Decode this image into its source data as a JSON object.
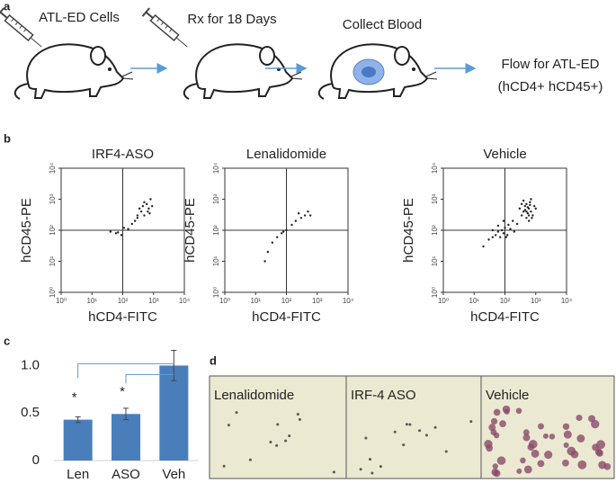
{
  "panel_labels": [
    "a",
    "b",
    "c",
    "d"
  ],
  "schematic": {
    "steps": [
      "ATL-ED Cells",
      "Rx  for 18 Days",
      "Collect Blood"
    ],
    "result": [
      "Flow for ATL-ED",
      "(hCD4+ hCD45+)"
    ]
  },
  "chart_data": [
    {
      "type": "scatter",
      "title": "IRF4-ASO",
      "x_label": "hCD4-FITC",
      "y_label": "hCD45-PE",
      "x": [
        40,
        60,
        70,
        90,
        110,
        150,
        200,
        250,
        300,
        350,
        400,
        450,
        500,
        600,
        700,
        800,
        900,
        500,
        650,
        300,
        750
      ],
      "y": [
        90,
        80,
        85,
        70,
        120,
        110,
        160,
        200,
        300,
        500,
        400,
        600,
        800,
        700,
        500,
        1000,
        600,
        300,
        400,
        250,
        350
      ],
      "xlim": [
        1,
        10000
      ],
      "ylim": [
        1,
        10000
      ],
      "xticks": [
        {
          "value": 1,
          "label": "10⁰"
        },
        {
          "value": 10,
          "label": "10¹"
        },
        {
          "value": 100,
          "label": "10²"
        },
        {
          "value": 1000,
          "label": "10³"
        },
        {
          "value": 10000,
          "label": "10⁴"
        }
      ],
      "yticks": [
        {
          "value": 1,
          "label": "10⁰"
        },
        {
          "value": 10,
          "label": "10¹"
        },
        {
          "value": 100,
          "label": "10²"
        },
        {
          "value": 1000,
          "label": "10³"
        },
        {
          "value": 10000,
          "label": "10⁴"
        }
      ],
      "log_scale": true,
      "gates": [
        100,
        100
      ],
      "color": "#222222"
    },
    {
      "type": "scatter",
      "title": "Lenalidomide",
      "x_label": "hCD4-FITC",
      "y_label": "hCD45-PE",
      "x": [
        20,
        25,
        35,
        50,
        70,
        100,
        150,
        200,
        300,
        400,
        500,
        600,
        250,
        80
      ],
      "y": [
        10,
        20,
        40,
        60,
        80,
        100,
        150,
        200,
        250,
        300,
        400,
        300,
        350,
        90
      ],
      "xlim": [
        1,
        10000
      ],
      "ylim": [
        1,
        10000
      ],
      "xticks": [
        {
          "value": 1,
          "label": "10⁰"
        },
        {
          "value": 10,
          "label": "10¹"
        },
        {
          "value": 100,
          "label": "10²"
        },
        {
          "value": 1000,
          "label": "10³"
        },
        {
          "value": 10000,
          "label": "10⁴"
        }
      ],
      "yticks": [
        {
          "value": 1,
          "label": "10⁰"
        },
        {
          "value": 10,
          "label": "10¹"
        },
        {
          "value": 100,
          "label": "10²"
        },
        {
          "value": 1000,
          "label": "10³"
        },
        {
          "value": 10000,
          "label": "10⁴"
        }
      ],
      "log_scale": true,
      "gates": [
        100,
        100
      ],
      "color": "#222222"
    },
    {
      "type": "scatter",
      "title": "Vehicle",
      "x_label": "hCD4-FITC",
      "y_label": "hCD45-PE",
      "x": [
        20,
        30,
        40,
        50,
        60,
        70,
        80,
        90,
        100,
        120,
        130,
        150,
        180,
        200,
        250,
        40,
        60,
        90,
        110,
        300,
        350,
        400,
        450,
        500,
        550,
        600,
        650,
        700,
        800,
        900,
        1000,
        400,
        500,
        600,
        700,
        450,
        550,
        650,
        350,
        750,
        500,
        600
      ],
      "y": [
        30,
        50,
        60,
        70,
        90,
        60,
        100,
        80,
        120,
        70,
        150,
        110,
        200,
        90,
        160,
        100,
        140,
        200,
        60,
        500,
        300,
        400,
        600,
        700,
        350,
        500,
        800,
        400,
        300,
        600,
        500,
        900,
        250,
        300,
        1000,
        450,
        550,
        650,
        700,
        250,
        400,
        200
      ],
      "xlim": [
        1,
        10000
      ],
      "ylim": [
        1,
        10000
      ],
      "xticks": [
        {
          "value": 1,
          "label": "10⁰"
        },
        {
          "value": 10,
          "label": "10¹"
        },
        {
          "value": 100,
          "label": "10²"
        },
        {
          "value": 1000,
          "label": "10³"
        },
        {
          "value": 10000,
          "label": "10⁴"
        }
      ],
      "yticks": [
        {
          "value": 1,
          "label": "10⁰"
        },
        {
          "value": 10,
          "label": "10¹"
        },
        {
          "value": 100,
          "label": "10²"
        },
        {
          "value": 1000,
          "label": "10³"
        },
        {
          "value": 10000,
          "label": "10⁴"
        }
      ],
      "log_scale": true,
      "gates": [
        100,
        100
      ],
      "color": "#222222"
    },
    {
      "type": "bar",
      "categories": [
        "Len",
        "ASO",
        "Veh"
      ],
      "values": [
        0.43,
        0.49,
        1.0
      ],
      "errors": [
        0.03,
        0.06,
        0.16
      ],
      "significance": [
        "*",
        "*",
        null
      ],
      "color": "#4a7ebb",
      "ylim": [
        0,
        1.25
      ],
      "yticks": [
        0,
        0.5,
        {
          "value": 1,
          "label": "1.0"
        }
      ]
    }
  ],
  "micrographs": [
    "Lenalidomide",
    "IRF-4 ASO",
    "Vehicle"
  ]
}
